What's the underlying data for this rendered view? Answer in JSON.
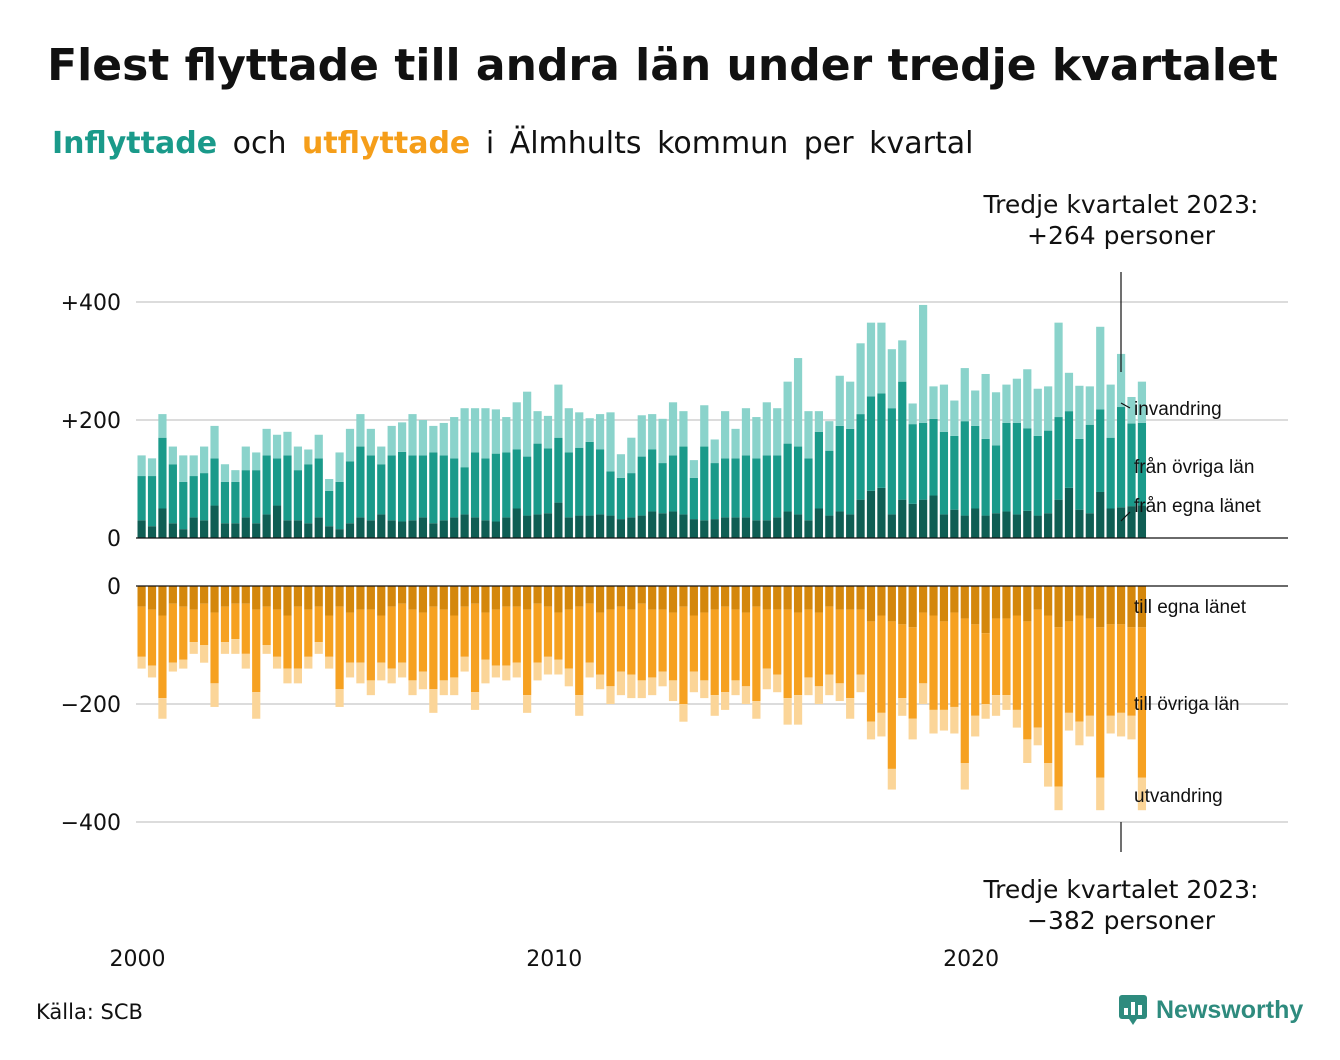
{
  "title": "Flest flyttade till andra län under tredje kvartalet",
  "subtitle": {
    "inflyttade": "Inflyttade",
    "och": "och",
    "utflyttade": "utflyttade",
    "rest": "i Älmhults kommun per kvartal"
  },
  "annotations": {
    "top_line1": "Tredje kvartalet 2023:",
    "top_line2": "+264 personer",
    "bottom_line1": "Tredje kvartalet 2023:",
    "bottom_line2": "−382 personer"
  },
  "source": "Källa: SCB",
  "brand": "Newsworthy",
  "colors": {
    "in_egna": "#0f5e54",
    "in_ovriga": "#1a9a8a",
    "in_invandring": "#8ad3cb",
    "out_egna": "#d4870c",
    "out_ovriga": "#f6a121",
    "out_utvandring": "#fbd598"
  },
  "chart_data": [
    {
      "type": "bar",
      "stacked": true,
      "x_start": "2000 Q1",
      "x_ticks": [
        "2000",
        "2010",
        "2020"
      ],
      "y_ticks": [
        "0",
        "+200",
        "+400"
      ],
      "ylim": [
        0,
        450
      ],
      "series": [
        {
          "name": "från egna länet",
          "values": [
            30,
            20,
            50,
            25,
            15,
            35,
            30,
            55,
            25,
            25,
            35,
            25,
            40,
            55,
            30,
            30,
            25,
            35,
            20,
            15,
            25,
            35,
            30,
            40,
            30,
            28,
            30,
            35,
            25,
            30,
            35,
            40,
            35,
            30,
            28,
            35,
            50,
            38,
            40,
            42,
            60,
            35,
            38,
            38,
            40,
            38,
            32,
            35,
            38,
            45,
            42,
            45,
            40,
            32,
            30,
            32,
            35,
            35,
            35,
            30,
            30,
            35,
            45,
            40,
            30,
            50,
            38,
            45,
            40,
            65,
            80,
            85,
            40,
            65,
            58,
            65,
            72,
            40,
            48,
            38,
            50,
            38,
            42,
            45,
            40,
            46,
            38,
            42,
            65,
            85,
            48,
            42,
            78,
            50,
            52,
            54,
            55
          ]
        },
        {
          "name": "från övriga län",
          "values": [
            75,
            85,
            120,
            100,
            80,
            70,
            80,
            80,
            70,
            70,
            80,
            90,
            100,
            80,
            110,
            85,
            100,
            100,
            60,
            80,
            105,
            120,
            110,
            85,
            110,
            118,
            110,
            105,
            120,
            110,
            100,
            80,
            110,
            105,
            115,
            110,
            100,
            100,
            120,
            110,
            110,
            110,
            115,
            125,
            110,
            75,
            70,
            75,
            100,
            105,
            85,
            95,
            115,
            70,
            125,
            95,
            100,
            100,
            105,
            105,
            110,
            105,
            115,
            115,
            105,
            130,
            110,
            145,
            145,
            145,
            160,
            160,
            180,
            200,
            135,
            130,
            130,
            140,
            125,
            160,
            140,
            130,
            115,
            150,
            155,
            140,
            135,
            140,
            140,
            130,
            120,
            150,
            140,
            120,
            170,
            140,
            140
          ]
        },
        {
          "name": "invandring",
          "values": [
            35,
            30,
            40,
            30,
            45,
            35,
            45,
            55,
            30,
            20,
            40,
            30,
            45,
            40,
            40,
            40,
            25,
            40,
            20,
            50,
            55,
            55,
            45,
            30,
            50,
            50,
            70,
            60,
            45,
            55,
            70,
            100,
            75,
            85,
            75,
            60,
            80,
            110,
            55,
            55,
            90,
            75,
            60,
            40,
            60,
            100,
            40,
            60,
            70,
            60,
            75,
            90,
            60,
            30,
            70,
            40,
            80,
            50,
            80,
            70,
            90,
            80,
            105,
            150,
            80,
            35,
            50,
            85,
            80,
            120,
            125,
            120,
            100,
            70,
            35,
            200,
            55,
            80,
            60,
            90,
            60,
            110,
            90,
            65,
            75,
            100,
            80,
            75,
            160,
            65,
            90,
            65,
            140,
            90,
            90,
            45,
            70
          ]
        }
      ]
    },
    {
      "type": "bar",
      "stacked": true,
      "x_start": "2000 Q1",
      "x_ticks": [
        "2000",
        "2010",
        "2020"
      ],
      "y_ticks": [
        "0",
        "−200",
        "−400"
      ],
      "ylim": [
        -450,
        0
      ],
      "series": [
        {
          "name": "till egna länet",
          "values": [
            -35,
            -40,
            -50,
            -30,
            -35,
            -40,
            -30,
            -45,
            -35,
            -30,
            -30,
            -40,
            -35,
            -40,
            -50,
            -35,
            -40,
            -35,
            -50,
            -35,
            -45,
            -40,
            -40,
            -50,
            -35,
            -30,
            -40,
            -45,
            -35,
            -40,
            -50,
            -35,
            -30,
            -45,
            -40,
            -35,
            -35,
            -40,
            -30,
            -35,
            -45,
            -40,
            -35,
            -30,
            -45,
            -40,
            -35,
            -40,
            -30,
            -40,
            -40,
            -45,
            -35,
            -50,
            -45,
            -40,
            -35,
            -40,
            -45,
            -35,
            -40,
            -40,
            -40,
            -45,
            -40,
            -45,
            -35,
            -40,
            -40,
            -40,
            -60,
            -50,
            -60,
            -65,
            -70,
            -45,
            -50,
            -60,
            -45,
            -55,
            -65,
            -80,
            -55,
            -55,
            -50,
            -60,
            -40,
            -50,
            -70,
            -60,
            -50,
            -55,
            -70,
            -65,
            -65,
            -70,
            -70
          ]
        },
        {
          "name": "till övriga län",
          "values": [
            -85,
            -95,
            -140,
            -100,
            -90,
            -55,
            -70,
            -120,
            -60,
            -60,
            -85,
            -140,
            -65,
            -80,
            -90,
            -105,
            -80,
            -60,
            -70,
            -140,
            -85,
            -90,
            -120,
            -80,
            -105,
            -100,
            -120,
            -100,
            -140,
            -120,
            -105,
            -85,
            -150,
            -80,
            -95,
            -100,
            -95,
            -145,
            -100,
            -85,
            -80,
            -100,
            -150,
            -100,
            -105,
            -130,
            -110,
            -110,
            -130,
            -115,
            -105,
            -115,
            -165,
            -95,
            -115,
            -145,
            -145,
            -120,
            -125,
            -160,
            -100,
            -110,
            -150,
            -140,
            -115,
            -125,
            -115,
            -125,
            -150,
            -110,
            -170,
            -165,
            -250,
            -125,
            -155,
            -120,
            -160,
            -150,
            -160,
            -245,
            -155,
            -120,
            -130,
            -130,
            -160,
            -200,
            -200,
            -250,
            -270,
            -155,
            -180,
            -165,
            -255,
            -155,
            -150,
            -150,
            -255
          ]
        },
        {
          "name": "utvandring",
          "values": [
            -20,
            -20,
            -35,
            -15,
            -15,
            -20,
            -30,
            -40,
            -20,
            -25,
            -25,
            -45,
            -15,
            -20,
            -25,
            -25,
            -20,
            -20,
            -20,
            -30,
            -25,
            -35,
            -25,
            -30,
            -25,
            -25,
            -25,
            -30,
            -40,
            -25,
            -30,
            -25,
            -30,
            -40,
            -20,
            -25,
            -25,
            -30,
            -30,
            -30,
            -25,
            -30,
            -35,
            -25,
            -25,
            -30,
            -40,
            -40,
            -30,
            -30,
            -25,
            -35,
            -30,
            -35,
            -30,
            -35,
            -30,
            -25,
            -30,
            -30,
            -35,
            -30,
            -45,
            -50,
            -30,
            -30,
            -35,
            -30,
            -35,
            -30,
            -30,
            -40,
            -35,
            -30,
            -35,
            -35,
            -40,
            -35,
            -45,
            -45,
            -35,
            -25,
            -35,
            -25,
            -30,
            -40,
            -30,
            -40,
            -40,
            -30,
            -40,
            -35,
            -55,
            -30,
            -40,
            -40,
            -55
          ]
        }
      ]
    }
  ],
  "series_labels": {
    "invandring": "invandring",
    "ovriga_in": "från övriga län",
    "egna_in": "från egna länet",
    "egna_out": "till egna länet",
    "ovriga_out": "till övriga län",
    "utvandring": "utvandring"
  }
}
